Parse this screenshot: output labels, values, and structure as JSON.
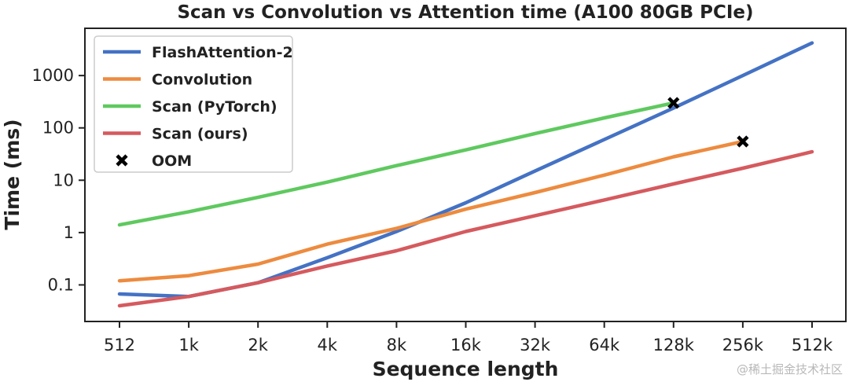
{
  "chart_data": {
    "type": "line",
    "title": "Scan vs Convolution vs Attention time (A100 80GB PCIe)",
    "xlabel": "Sequence length",
    "ylabel": "Time (ms)",
    "x": [
      "512",
      "1k",
      "2k",
      "4k",
      "8k",
      "16k",
      "32k",
      "64k",
      "128k",
      "256k",
      "512k"
    ],
    "y_scale": "log",
    "ylim": [
      0.02,
      8000
    ],
    "y_ticks": [
      0.1,
      1,
      10,
      100,
      1000
    ],
    "y_tick_labels": [
      "0.1",
      "1",
      "10",
      "100",
      "1000"
    ],
    "grid": false,
    "legend_position": "top-left",
    "series": [
      {
        "name": "FlashAttention-2",
        "color": "#4472c4",
        "values": [
          0.067,
          0.06,
          0.11,
          0.33,
          1.05,
          3.7,
          15,
          60,
          240,
          1000,
          4200
        ]
      },
      {
        "name": "Convolution",
        "color": "#ed8b3f",
        "values": [
          0.12,
          0.15,
          0.25,
          0.6,
          1.2,
          2.8,
          5.8,
          12.5,
          28,
          55,
          null
        ]
      },
      {
        "name": "Scan (PyTorch)",
        "color": "#5fc95f",
        "values": [
          1.4,
          2.5,
          4.7,
          9.2,
          19,
          38,
          78,
          155,
          300,
          null,
          null
        ]
      },
      {
        "name": "Scan (ours)",
        "color": "#d55a5e",
        "values": [
          0.04,
          0.06,
          0.11,
          0.23,
          0.45,
          1.05,
          2.1,
          4.2,
          8.5,
          17,
          35
        ]
      }
    ],
    "oom_markers": {
      "label": "OOM",
      "points": [
        {
          "x": "128k",
          "y": 300
        },
        {
          "x": "256k",
          "y": 55
        }
      ]
    }
  },
  "watermark": "@稀土掘金技术社区"
}
